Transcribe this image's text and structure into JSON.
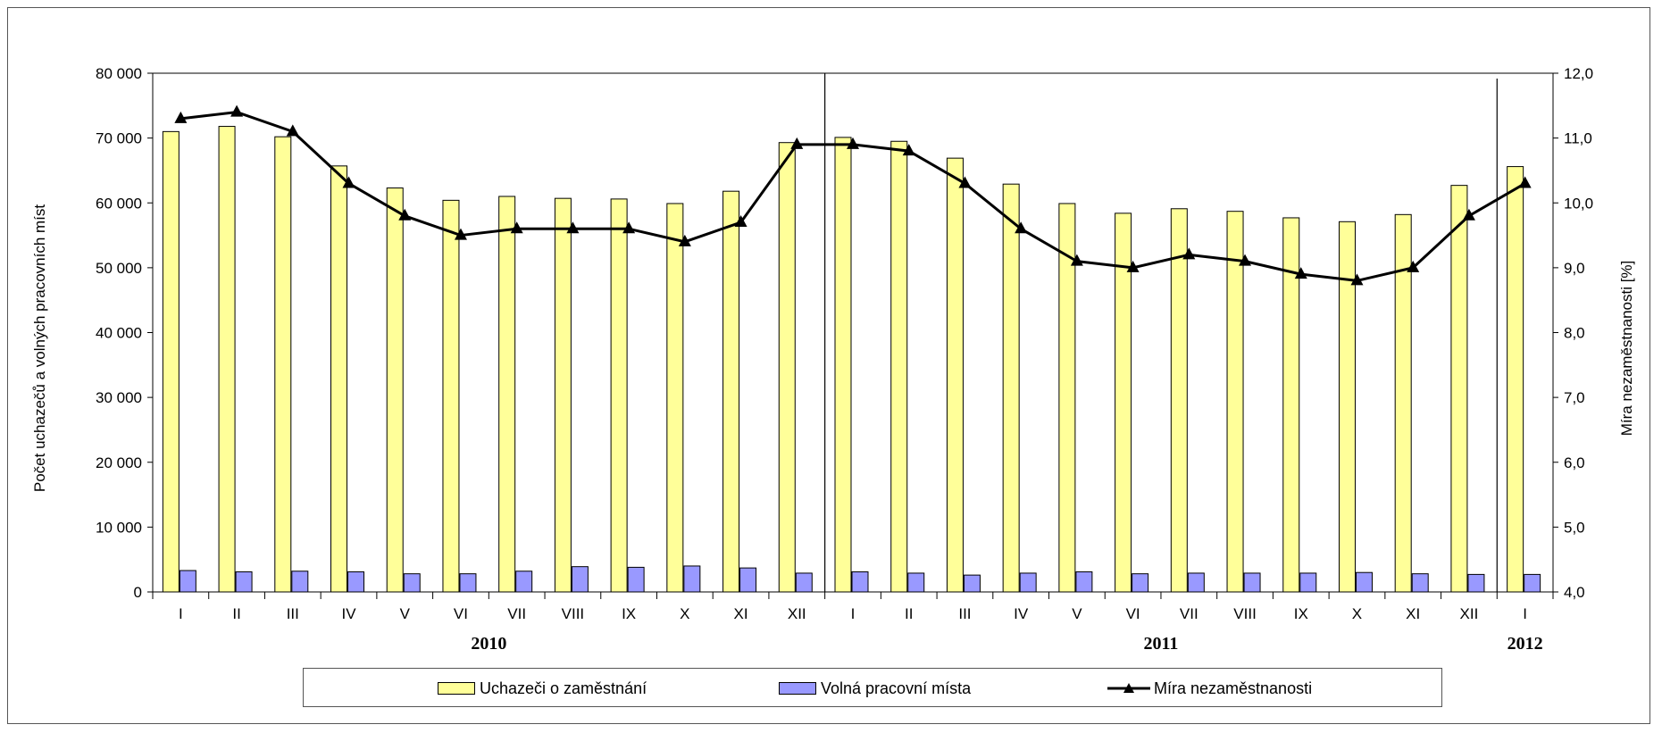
{
  "chart_data": {
    "type": "bar+line",
    "categories": [
      "I",
      "II",
      "III",
      "IV",
      "V",
      "VI",
      "VII",
      "VIII",
      "IX",
      "X",
      "XI",
      "XII",
      "I",
      "II",
      "III",
      "IV",
      "V",
      "VI",
      "VII",
      "VIII",
      "IX",
      "X",
      "XI",
      "XII",
      "I"
    ],
    "years": [
      {
        "label": "2010"
      },
      {
        "label": "2011"
      },
      {
        "label": "2012"
      }
    ],
    "series": [
      {
        "name": "Uchazeči o zaměstnání",
        "type": "bar",
        "axis": "left",
        "color": "#ffff99",
        "values": [
          71000,
          71800,
          70200,
          65700,
          62300,
          60400,
          61000,
          60700,
          60600,
          59900,
          61800,
          69300,
          70100,
          69500,
          66900,
          62900,
          59900,
          58400,
          59100,
          58700,
          57700,
          57100,
          58200,
          62700,
          65600
        ]
      },
      {
        "name": "Volná pracovní místa",
        "type": "bar",
        "axis": "left",
        "color": "#9999ff",
        "values": [
          3300,
          3100,
          3200,
          3100,
          2800,
          2800,
          3200,
          3900,
          3800,
          4000,
          3700,
          2900,
          3100,
          2900,
          2600,
          2900,
          3100,
          2800,
          2900,
          2900,
          2900,
          3000,
          2800,
          2700,
          2700
        ]
      },
      {
        "name": "Míra nezaměstnanosti",
        "type": "line",
        "axis": "right",
        "color": "#000000",
        "values": [
          11.3,
          11.4,
          11.1,
          10.3,
          9.8,
          9.5,
          9.6,
          9.6,
          9.6,
          9.4,
          9.7,
          10.9,
          10.9,
          10.8,
          10.3,
          9.6,
          9.1,
          9.0,
          9.2,
          9.1,
          8.9,
          8.8,
          9.0,
          9.8,
          10.3
        ]
      }
    ],
    "ylabel_left": "Počet uchazečů a volných pracovních míst",
    "ylabel_right": "Míra nezaměstnanosti [%]",
    "ylim_left": [
      0,
      80000
    ],
    "ylim_right": [
      4.0,
      12.0
    ],
    "yticks_left": [
      "0",
      "10 000",
      "20 000",
      "30 000",
      "40 000",
      "50 000",
      "60 000",
      "70 000",
      "80 000"
    ],
    "yticks_right": [
      "4,0",
      "5,0",
      "6,0",
      "7,0",
      "8,0",
      "9,0",
      "10,0",
      "11,0",
      "12,0"
    ],
    "legend_position": "bottom"
  }
}
